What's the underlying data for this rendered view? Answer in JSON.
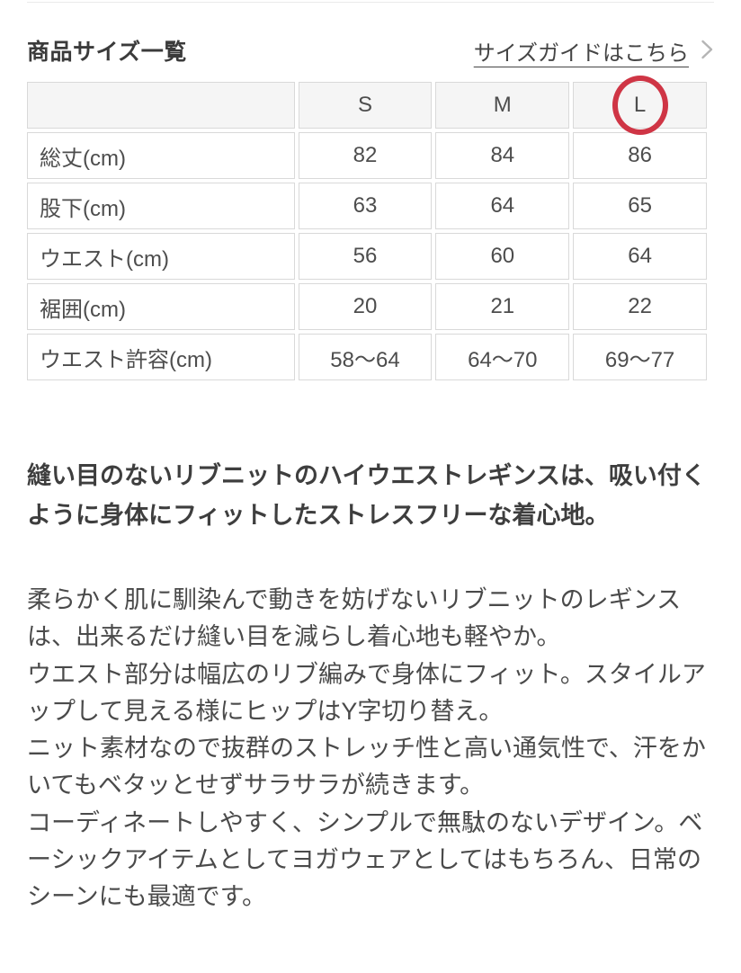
{
  "header": {
    "title": "商品サイズ一覧",
    "size_guide_label": "サイズガイドはこちら",
    "chevron_icon": "chevron-right"
  },
  "size_table": {
    "columns": [
      "",
      "S",
      "M",
      "L"
    ],
    "highlighted_column": "L",
    "highlight_color": "#cf3545",
    "rows": [
      {
        "label": "総丈(cm)",
        "values": [
          "82",
          "84",
          "86"
        ]
      },
      {
        "label": "股下(cm)",
        "values": [
          "63",
          "64",
          "65"
        ]
      },
      {
        "label": "ウエスト(cm)",
        "values": [
          "56",
          "60",
          "64"
        ]
      },
      {
        "label": "裾囲(cm)",
        "values": [
          "20",
          "21",
          "22"
        ]
      },
      {
        "label": "ウエスト許容(cm)",
        "values": [
          "58〜64",
          "64〜70",
          "69〜77"
        ]
      }
    ]
  },
  "description": {
    "headline": "縫い目のないリブニットのハイウエストレギンスは、吸い付くように身体にフィットしたストレスフリーな着心地。",
    "paragraphs": [
      "柔らかく肌に馴染んで動きを妨げないリブニットのレギンスは、出来るだけ縫い目を減らし着心地も軽やか。",
      "ウエスト部分は幅広のリブ編みで身体にフィット。スタイルアップして見える様にヒップはY字切り替え。",
      "ニット素材なので抜群のストレッチ性と高い通気性で、汗をかいてもベタッとせずサラサラが続きます。",
      "コーディネートしやすく、シンプルで無駄のないデザイン。ベーシックアイテムとしてヨガウェアとしてはもちろん、日常のシーンにも最適です。"
    ]
  }
}
